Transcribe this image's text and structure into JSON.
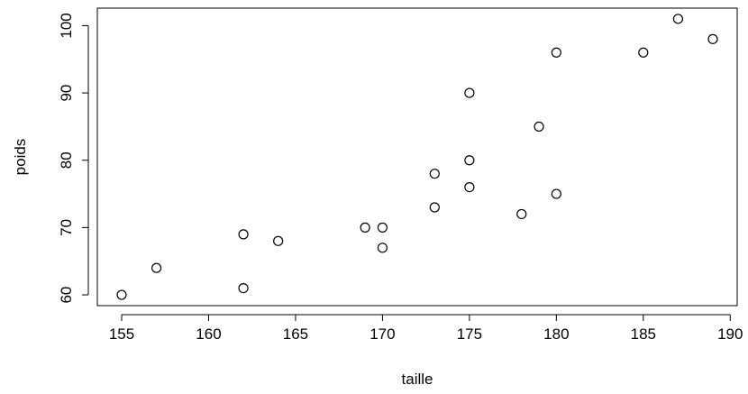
{
  "chart_data": {
    "type": "scatter",
    "title": "",
    "xlabel": "taille",
    "ylabel": "poids",
    "xlim": [
      153.6,
      190.4
    ],
    "ylim": [
      58.4,
      102.6
    ],
    "x_ticks": [
      155,
      160,
      165,
      170,
      175,
      180,
      185,
      190
    ],
    "y_ticks": [
      60,
      70,
      80,
      90,
      100
    ],
    "grid": false,
    "legend": "none",
    "marker": "open-circle",
    "series": [
      {
        "points": [
          {
            "x": 155,
            "y": 60
          },
          {
            "x": 157,
            "y": 64
          },
          {
            "x": 162,
            "y": 69
          },
          {
            "x": 162,
            "y": 61
          },
          {
            "x": 164,
            "y": 68
          },
          {
            "x": 169,
            "y": 70
          },
          {
            "x": 170,
            "y": 70
          },
          {
            "x": 170,
            "y": 67
          },
          {
            "x": 173,
            "y": 78
          },
          {
            "x": 173,
            "y": 73
          },
          {
            "x": 175,
            "y": 90
          },
          {
            "x": 175,
            "y": 80
          },
          {
            "x": 175,
            "y": 76
          },
          {
            "x": 178,
            "y": 72
          },
          {
            "x": 179,
            "y": 85
          },
          {
            "x": 180,
            "y": 96
          },
          {
            "x": 180,
            "y": 75
          },
          {
            "x": 185,
            "y": 96
          },
          {
            "x": 187,
            "y": 101
          },
          {
            "x": 189,
            "y": 98
          }
        ]
      }
    ]
  },
  "colors": {
    "axis": "#000000",
    "point_stroke": "#000000",
    "background": "#ffffff"
  }
}
